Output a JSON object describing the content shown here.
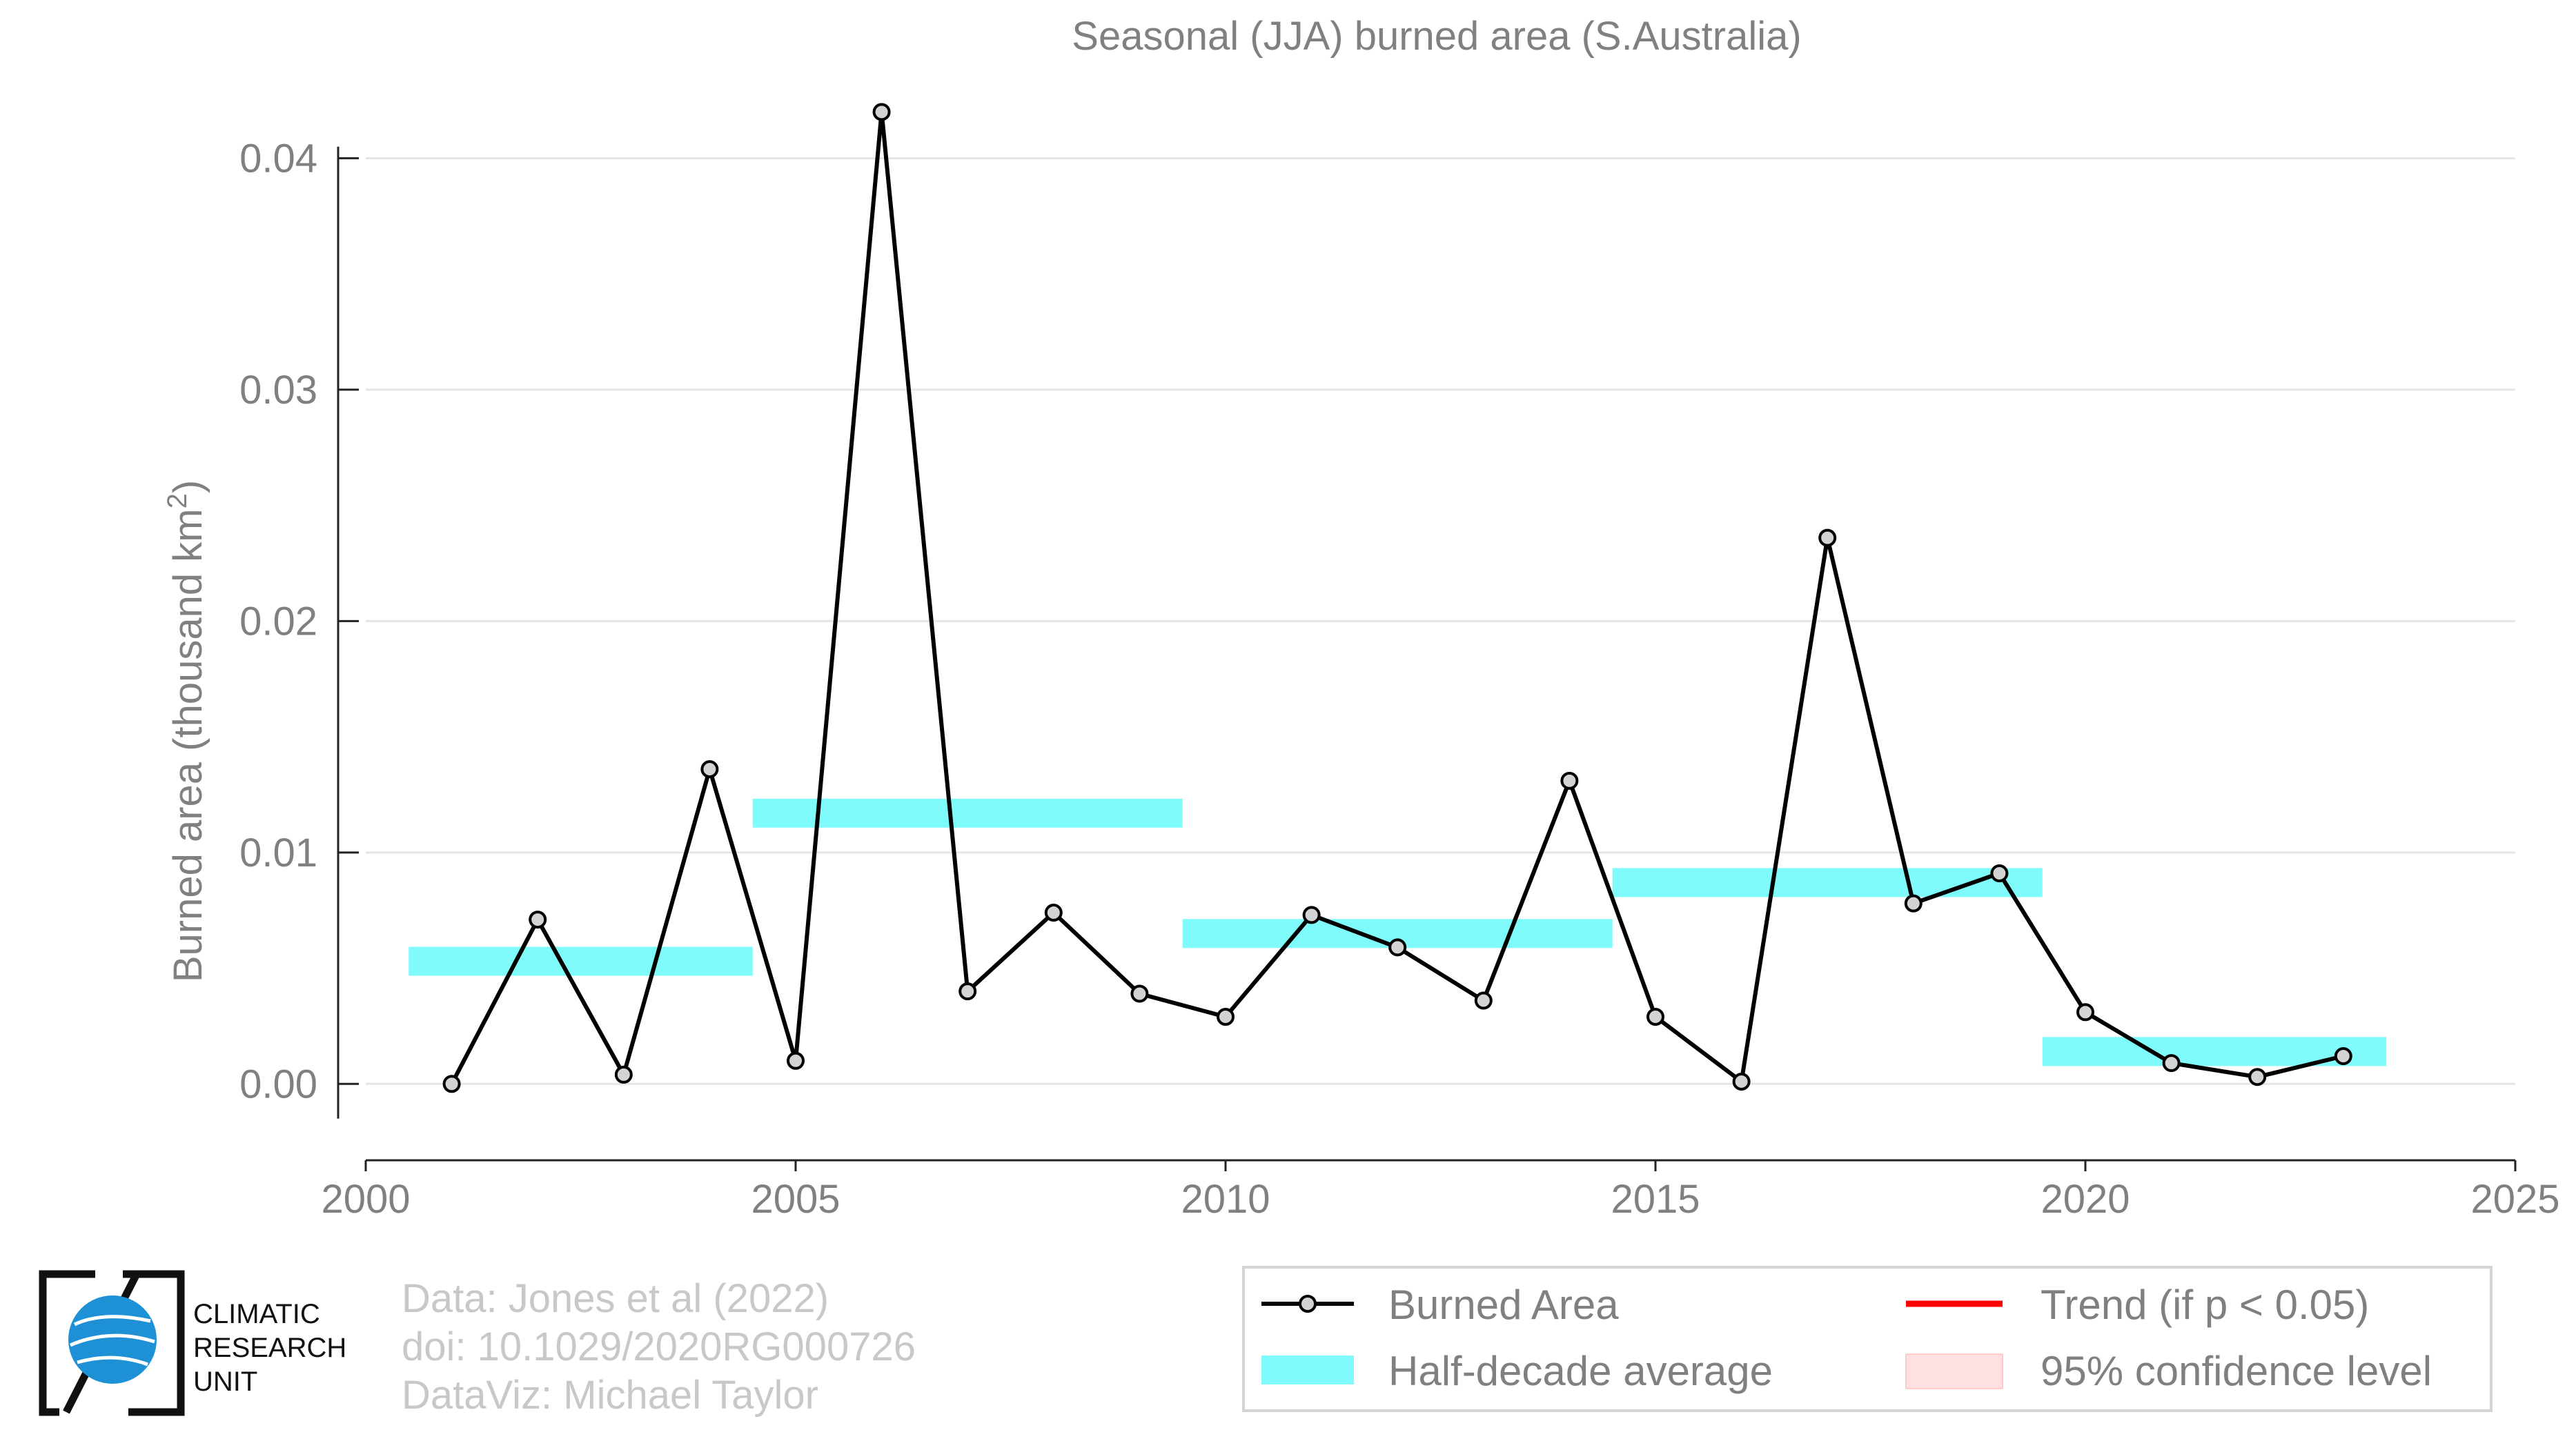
{
  "chart_data": {
    "type": "line",
    "title": "Seasonal (JJA) burned area (S.Australia)",
    "ylabel_prefix": "Burned area (thousand km",
    "ylabel_sup": "2",
    "ylabel_suffix": ")",
    "xlabel": "",
    "xlim": [
      2000,
      2025
    ],
    "ylim": [
      -0.0033,
      0.0435
    ],
    "x_ticks": [
      2000,
      2005,
      2010,
      2015,
      2020,
      2025
    ],
    "y_ticks": [
      0.0,
      0.01,
      0.02,
      0.03,
      0.04
    ],
    "y_tick_labels": [
      "0.00",
      "0.01",
      "0.02",
      "0.03",
      "0.04"
    ],
    "grid": "horizontal",
    "series": [
      {
        "name": "Burned Area",
        "kind": "line-markers",
        "color": "#000000",
        "marker_fill": "#d3d3d3",
        "x": [
          2001,
          2002,
          2003,
          2004,
          2005,
          2006,
          2007,
          2008,
          2009,
          2010,
          2011,
          2012,
          2013,
          2014,
          2015,
          2016,
          2017,
          2018,
          2019,
          2020,
          2021,
          2022,
          2023
        ],
        "y": [
          0.0,
          0.0071,
          0.0004,
          0.0136,
          0.001,
          0.042,
          0.004,
          0.0074,
          0.0039,
          0.0029,
          0.0073,
          0.0059,
          0.0036,
          0.0131,
          0.0029,
          0.0001,
          0.0236,
          0.0078,
          0.0091,
          0.0031,
          0.0009,
          0.0003,
          0.0012
        ]
      },
      {
        "name": "Half-decade average",
        "kind": "segments",
        "color": "#7ffbfb",
        "segments": [
          {
            "x0": 2000.5,
            "x1": 2004.5,
            "y": 0.0053
          },
          {
            "x0": 2004.5,
            "x1": 2009.5,
            "y": 0.0117
          },
          {
            "x0": 2009.5,
            "x1": 2014.5,
            "y": 0.0065
          },
          {
            "x0": 2014.5,
            "x1": 2019.5,
            "y": 0.0087
          },
          {
            "x0": 2019.5,
            "x1": 2023.5,
            "y": 0.0014
          }
        ]
      }
    ],
    "legend": {
      "placement": "bottom-right",
      "items": [
        {
          "label": "Burned Area",
          "kind": "line-marker",
          "color": "#000000"
        },
        {
          "label": "Trend (if p < 0.05)",
          "kind": "line",
          "color": "#ff0000"
        },
        {
          "label": "Half-decade average",
          "kind": "band",
          "color": "#7ffbfb"
        },
        {
          "label": "95% confidence level",
          "kind": "band",
          "color": "#ffe0e0"
        }
      ]
    },
    "credits": [
      "Data: Jones et al (2022)",
      "doi: 10.1029/2020RG000726",
      "DataViz: Michael Taylor"
    ]
  },
  "logo": {
    "lines": [
      "CLIMATIC",
      "RESEARCH",
      "UNIT"
    ],
    "globe_color": "#1e90d6"
  }
}
